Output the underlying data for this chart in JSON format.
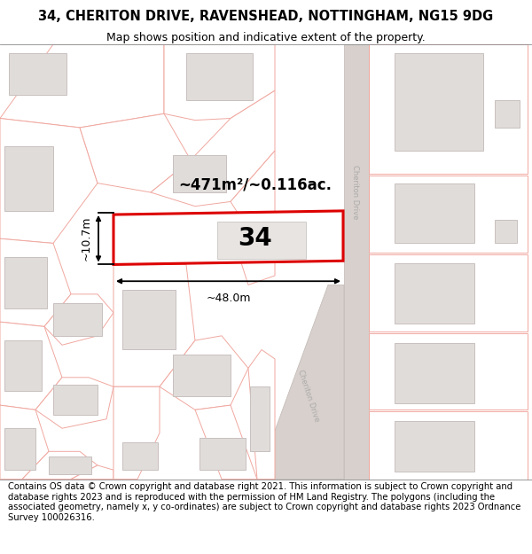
{
  "title_line1": "34, CHERITON DRIVE, RAVENSHEAD, NOTTINGHAM, NG15 9DG",
  "title_line2": "Map shows position and indicative extent of the property.",
  "footer_text": "Contains OS data © Crown copyright and database right 2021. This information is subject to Crown copyright and database rights 2023 and is reproduced with the permission of HM Land Registry. The polygons (including the associated geometry, namely x, y co-ordinates) are subject to Crown copyright and database rights 2023 Ordnance Survey 100026316.",
  "area_label": "~471m²/~0.116ac.",
  "width_label": "~48.0m",
  "height_label": "~10.7m",
  "property_number": "34",
  "map_bg": "#ffffff",
  "plot_edge": "#f0a8a0",
  "building_fill": "#e0dcda",
  "building_edge": "#c8c0be",
  "road_fill": "#d8d0cc",
  "road_edge": "#c0b8b4",
  "property_outline_color": "#dd0000",
  "property_fill": "#ffffff",
  "road_label_color": "#aaaaaa",
  "title_fontsize": 10.5,
  "subtitle_fontsize": 9,
  "footer_fontsize": 7.2,
  "number_fontsize": 20,
  "area_fontsize": 12,
  "dim_fontsize": 9
}
